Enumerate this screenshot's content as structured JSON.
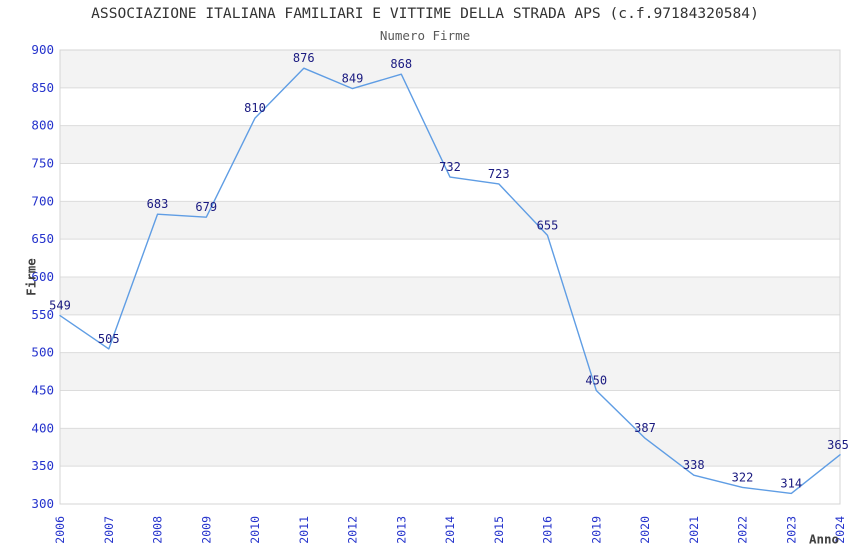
{
  "chart_data": {
    "type": "line",
    "title": "ASSOCIAZIONE ITALIANA FAMILIARI E VITTIME DELLA STRADA APS (c.f.97184320584)",
    "subtitle": "Numero Firme",
    "xlabel": "Anno",
    "ylabel": "Firme",
    "categories": [
      "2006",
      "2007",
      "2008",
      "2009",
      "2010",
      "2011",
      "2012",
      "2013",
      "2014",
      "2015",
      "2016",
      "2019",
      "2020",
      "2021",
      "2022",
      "2023",
      "2024"
    ],
    "values": [
      549,
      505,
      683,
      679,
      810,
      876,
      849,
      868,
      732,
      723,
      655,
      450,
      387,
      338,
      322,
      314,
      365
    ],
    "ylim": [
      300,
      900
    ],
    "ytick_step": 50,
    "grid": "horizontal-bands-alternating",
    "legend": "none",
    "x_tick_rotation": -90,
    "colors": {
      "line": "#5f9de4",
      "tick_label": "#2533cc",
      "data_label": "#1a1a80",
      "band_fill": "#f3f3f3",
      "gridline": "#dcdcdc",
      "plot_border": "#d4d4d4",
      "title": "#333333",
      "subtitle": "#595959",
      "axis_title": "#404040",
      "background": "#ffffff"
    }
  }
}
